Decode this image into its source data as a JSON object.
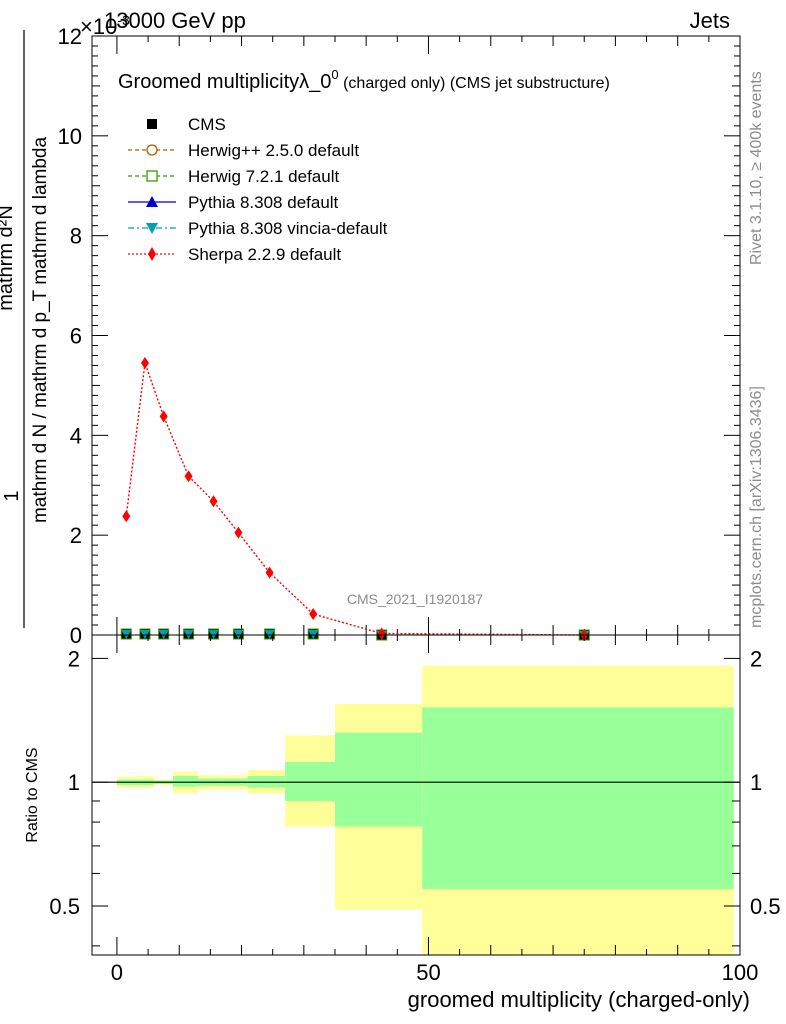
{
  "header": {
    "energy_label": "13000 GeV pp",
    "process_label": "Jets",
    "exponent_label": "×10",
    "exponent_power": "-3"
  },
  "side_labels": {
    "rivet": "Rivet 3.1.10, ≥ 400k events",
    "mcplots": "mcplots.cern.ch [arXiv:1306.3436]"
  },
  "watermark": "CMS_2021_I1920187",
  "legend": [
    {
      "label": "CMS",
      "color": "#000000",
      "marker": "square-filled",
      "line": "none"
    },
    {
      "label": "Herwig++ 2.5.0 default",
      "color": "#b35a00",
      "marker": "circle-open",
      "line": "dashed"
    },
    {
      "label": "Herwig 7.2.1 default",
      "color": "#3a9a00",
      "marker": "square-open",
      "line": "dashed"
    },
    {
      "label": "Pythia 8.308 default",
      "color": "#0000cc",
      "marker": "triangle-up",
      "line": "solid"
    },
    {
      "label": "Pythia 8.308 vincia-default",
      "color": "#00a0b0",
      "marker": "triangle-down",
      "line": "dashdot"
    },
    {
      "label": "Sherpa 2.2.9 default",
      "color": "#ff0000",
      "marker": "diamond",
      "line": "dotted"
    }
  ],
  "chart_data": [
    {
      "type": "line",
      "title": "Groomed multiplicity",
      "title_lambda": "λ_0",
      "title_sup": "0",
      "title_suffix": " (charged only) (CMS jet substructure)",
      "xlabel": "groomed multiplicity (charged-only)",
      "ylabel_numerator": "1",
      "ylabel_denominator": "mathrm d N / mathrm d p_T mathrm d lambda",
      "ylabel_main": "mathrm d²N",
      "ylim": [
        0,
        12
      ],
      "y_scale_note": "×10^-3",
      "xlim": [
        -4,
        100
      ],
      "yticks": [
        "0",
        "2",
        "4",
        "6",
        "8",
        "10",
        "12"
      ],
      "series": [
        {
          "name": "Sherpa 2.2.9 default",
          "x": [
            1.5,
            4.5,
            7.5,
            11.5,
            15.5,
            19.5,
            24.5,
            31.5,
            42.5,
            75
          ],
          "y": [
            2.38,
            5.45,
            4.38,
            3.18,
            2.68,
            2.05,
            1.25,
            0.42,
            0.03,
            0.0
          ]
        },
        {
          "name": "CMS",
          "x": [
            1.5,
            4.5,
            7.5,
            11.5,
            15.5,
            19.5,
            24.5,
            31.5,
            42.5,
            75
          ],
          "y": [
            0.02,
            0.02,
            0.02,
            0.02,
            0.02,
            0.02,
            0.02,
            0.02,
            0.0,
            0.0
          ]
        }
      ]
    },
    {
      "type": "area",
      "ylabel": "Ratio to CMS",
      "xlabel": "groomed multiplicity (charged-only)",
      "ylim": [
        0.38,
        2.28
      ],
      "xlim": [
        -4,
        100
      ],
      "xticks": [
        "0",
        "50",
        "100"
      ],
      "yticks": [
        "0.5",
        "1",
        "2"
      ],
      "bins": [
        {
          "lo": 0,
          "hi": 3,
          "total": [
            0.97,
            1.03
          ],
          "stat": [
            0.985,
            1.015
          ]
        },
        {
          "lo": 3,
          "hi": 6,
          "total": [
            0.97,
            1.035
          ],
          "stat": [
            0.985,
            1.015
          ]
        },
        {
          "lo": 6,
          "hi": 9,
          "total": [
            0.985,
            1.015
          ],
          "stat": [
            0.99,
            1.01
          ]
        },
        {
          "lo": 9,
          "hi": 13,
          "total": [
            0.94,
            1.06
          ],
          "stat": [
            0.975,
            1.035
          ]
        },
        {
          "lo": 13,
          "hi": 17,
          "total": [
            0.96,
            1.04
          ],
          "stat": [
            0.98,
            1.02
          ]
        },
        {
          "lo": 17,
          "hi": 21,
          "total": [
            0.96,
            1.04
          ],
          "stat": [
            0.98,
            1.02
          ]
        },
        {
          "lo": 21,
          "hi": 27,
          "total": [
            0.94,
            1.07
          ],
          "stat": [
            0.97,
            1.035
          ]
        },
        {
          "lo": 27,
          "hi": 35,
          "total": [
            0.78,
            1.3
          ],
          "stat": [
            0.9,
            1.12
          ]
        },
        {
          "lo": 35,
          "hi": 49,
          "total": [
            0.49,
            1.55
          ],
          "stat": [
            0.78,
            1.32
          ]
        },
        {
          "lo": 49,
          "hi": 99,
          "total": [
            0.38,
            1.92
          ],
          "stat": [
            0.55,
            1.52
          ]
        }
      ]
    }
  ]
}
